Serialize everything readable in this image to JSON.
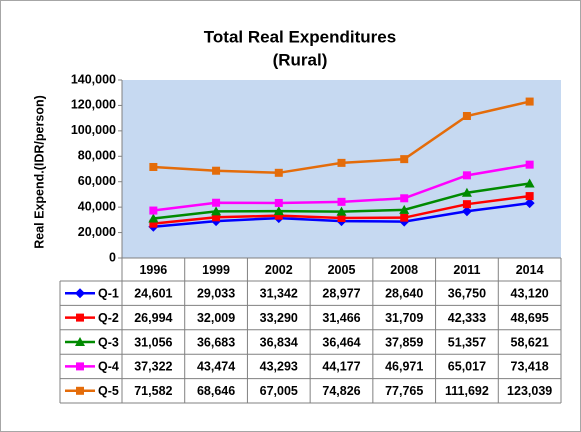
{
  "chart_data": {
    "type": "line",
    "title": "Total Real Expenditures",
    "subtitle": "(Rural)",
    "y_label": "Real Expend.(IDR/person)",
    "categories": [
      "1996",
      "1999",
      "2002",
      "2005",
      "2008",
      "2011",
      "2014"
    ],
    "ylim": [
      0,
      140000
    ],
    "yticks": [
      0,
      {
        "value": 20000,
        "label": "20,000"
      },
      {
        "value": 40000,
        "label": "40,000"
      },
      {
        "value": 60000,
        "label": "60,000"
      },
      {
        "value": 80000,
        "label": "80,000"
      },
      {
        "value": 100000,
        "label": "100,000"
      },
      {
        "value": 120000,
        "label": "120,000"
      },
      {
        "value": 140000,
        "label": "140,000"
      }
    ],
    "plot_background": "#c6d9f1",
    "series": [
      {
        "name": "Q-1",
        "color": "#0000ff",
        "marker": "diamond",
        "values": [
          24601,
          29033,
          31342,
          28977,
          28640,
          36750,
          43120
        ],
        "value_labels": [
          "24,601",
          "29,033",
          "31,342",
          "28,977",
          "28,640",
          "36,750",
          "43,120"
        ]
      },
      {
        "name": "Q-2",
        "color": "#ff0000",
        "marker": "square",
        "values": [
          26994,
          32009,
          33290,
          31466,
          31709,
          42333,
          48695
        ],
        "value_labels": [
          "26,994",
          "32,009",
          "33,290",
          "31,466",
          "31,709",
          "42,333",
          "48,695"
        ]
      },
      {
        "name": "Q-3",
        "color": "#008a00",
        "marker": "triangle",
        "values": [
          31056,
          36683,
          36834,
          36464,
          37859,
          51357,
          58621
        ],
        "value_labels": [
          "31,056",
          "36,683",
          "36,834",
          "36,464",
          "37,859",
          "51,357",
          "58,621"
        ]
      },
      {
        "name": "Q-4",
        "color": "#ff00ff",
        "marker": "square",
        "values": [
          37322,
          43474,
          43293,
          44177,
          46971,
          65017,
          73418
        ],
        "value_labels": [
          "37,322",
          "43,474",
          "43,293",
          "44,177",
          "46,971",
          "65,017",
          "73,418"
        ]
      },
      {
        "name": "Q-5",
        "color": "#e46c0a",
        "marker": "square",
        "values": [
          71582,
          68646,
          67005,
          74826,
          77765,
          111692,
          123039
        ],
        "value_labels": [
          "71,582",
          "68,646",
          "67,005",
          "74,826",
          "77,765",
          "111,692",
          "123,039"
        ]
      }
    ]
  }
}
